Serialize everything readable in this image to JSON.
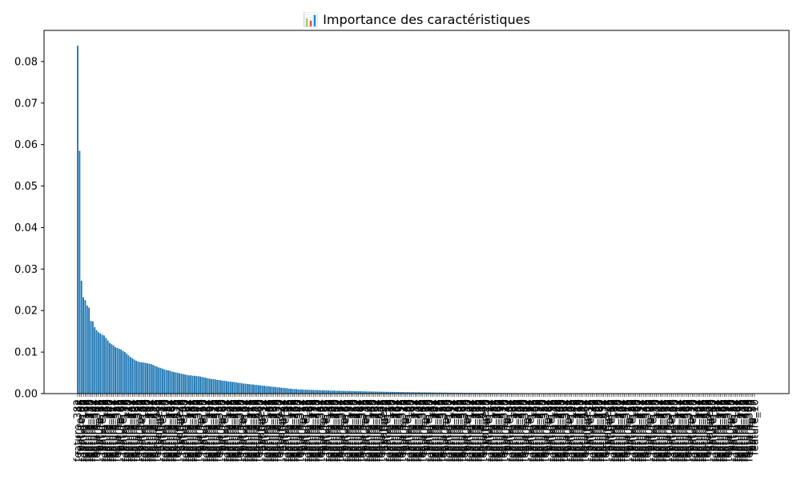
{
  "chart_data": {
    "type": "bar",
    "title": "📊 Importance des caractéristiques",
    "xlabel": "",
    "ylabel": "",
    "ylim": [
      0,
      0.0875
    ],
    "yticks": [
      0.0,
      0.01,
      0.02,
      0.03,
      0.04,
      0.05,
      0.06,
      0.07,
      0.08
    ],
    "ytick_labels": [
      "0.00",
      "0.01",
      "0.02",
      "0.03",
      "0.04",
      "0.05",
      "0.06",
      "0.07",
      "0.08"
    ],
    "bar_color": "#1f77b4",
    "bar_count": 360,
    "category_prefix": "feature_",
    "first_label": "feature_382",
    "last_label": "feature_10",
    "leading_values": [
      0.0838,
      0.0585,
      0.0272,
      0.0232,
      0.0225,
      0.0212,
      0.0207,
      0.0175,
      0.0174,
      0.016,
      0.0153,
      0.0148,
      0.0145,
      0.0142,
      0.014,
      0.0134,
      0.0128,
      0.0122,
      0.0119,
      0.0116,
      0.0112,
      0.011,
      0.0108,
      0.0106,
      0.0103,
      0.01,
      0.0096,
      0.0092,
      0.0088,
      0.0085,
      0.0082,
      0.0079,
      0.0077,
      0.0076,
      0.0075,
      0.0075,
      0.0074,
      0.0073,
      0.0072,
      0.0071,
      0.0069,
      0.0067,
      0.0065,
      0.0063,
      0.0062,
      0.006,
      0.0058,
      0.0057,
      0.0056,
      0.0055,
      0.0053,
      0.0052,
      0.0051,
      0.005,
      0.0049,
      0.0048,
      0.0047,
      0.0046,
      0.0045,
      0.0044,
      0.0044,
      0.0043,
      0.0043,
      0.0042,
      0.0042,
      0.0041,
      0.004,
      0.0039,
      0.0038,
      0.0037,
      0.0036,
      0.0035,
      0.0035,
      0.0034,
      0.0033,
      0.0033,
      0.0032,
      0.0031,
      0.0031,
      0.003,
      0.0029,
      0.0029,
      0.0028,
      0.0028,
      0.0027,
      0.0026,
      0.0026,
      0.0025,
      0.0024,
      0.0024,
      0.0023,
      0.0023,
      0.0022,
      0.0022,
      0.0021,
      0.0021,
      0.002,
      0.002,
      0.0019,
      0.0019,
      0.0018,
      0.0018,
      0.0017,
      0.0017,
      0.0016,
      0.0016,
      0.0015,
      0.0015,
      0.0014,
      0.0014,
      0.0013,
      0.0013,
      0.0012,
      0.0012,
      0.0011,
      0.0011,
      0.0011,
      0.001,
      0.001,
      0.001
    ],
    "tail_start": 0.00095,
    "tail_end": 0.0,
    "tail_decay": 3.2
  }
}
